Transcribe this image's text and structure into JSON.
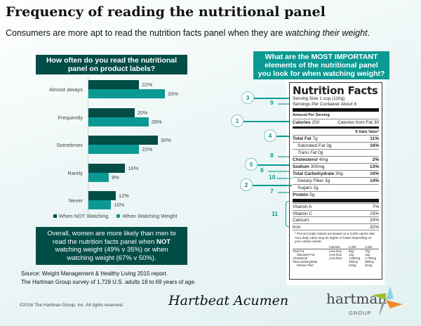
{
  "header": {
    "title": "Frequency of reading the nutritional panel",
    "subtitle_pre": "Consumers are more apt to read the nutrition facts panel when they are ",
    "subtitle_em": "watching their weight",
    "subtitle_post": "."
  },
  "chart_data": {
    "type": "bar",
    "orientation": "horizontal",
    "title": "How often do you read the nutritional panel on product labels?",
    "categories": [
      "Almost always",
      "Frequently",
      "Sometimes",
      "Rarely",
      "Never"
    ],
    "series": [
      {
        "name": "When NOT Watching",
        "color": "#034d47",
        "values": [
          22,
          20,
          30,
          16,
          12
        ]
      },
      {
        "name": "When Watching Weight",
        "color": "#0a9a93",
        "values": [
          33,
          26,
          22,
          9,
          10
        ]
      }
    ],
    "unit": "%",
    "legend": "bottom"
  },
  "callout": {
    "pre": "Overall, women are more likely than men to read the nutrition facts panel when ",
    "bold": "NOT",
    "post": " watching weight (49% v 35%) or when watching weight (67% v 50%)."
  },
  "source": {
    "line1": "Source: Weight Management & Healthy Living 2015 report.",
    "line2": "The Hartman Group survey of 1,728 U.S. adults 18 to 69 years of age."
  },
  "copyright": "©2016 The Hartman Group, Inc. All rights reserved.",
  "logos": {
    "hartbeat": "Hartbeat Acumen",
    "hartman": "hartman",
    "group": "GROUP"
  },
  "right": {
    "question": "What are the MOST IMPORTANT elements of the nutritional panel you look for when watching weight?"
  },
  "label": {
    "title": "Nutrition Facts",
    "serving_size": "Serving Size 1 cup (110g)",
    "servings": "Servings Per Container About 6",
    "amount": "Amount Per Serving",
    "calories_l": "Calories",
    "calories_v": "250",
    "cal_fat": "Calories from Fat 30",
    "dv": "% Daily Value*",
    "rows": [
      {
        "name": "Total Fat",
        "amt": "7g",
        "pct": "11%"
      },
      {
        "name": "Saturated Fat",
        "amt": "3g",
        "pct": "16%"
      },
      {
        "name": "Trans Fat",
        "amt": "0g",
        "pct": ""
      },
      {
        "name": "Cholesterol",
        "amt": "4mg",
        "pct": "2%"
      },
      {
        "name": "Sodium",
        "amt": "300mg",
        "pct": "13%"
      },
      {
        "name": "Total Carbohydrate",
        "amt": "30g",
        "pct": "10%"
      },
      {
        "name": "Dietary Fiber",
        "amt": "3g",
        "pct": "14%"
      },
      {
        "name": "Sugars",
        "amt": "2g",
        "pct": ""
      },
      {
        "name": "Protein",
        "amt": "5g",
        "pct": ""
      }
    ],
    "vitamins": [
      {
        "name": "Vitamin A",
        "pct": "7%"
      },
      {
        "name": "Vitamin C",
        "pct": "15%"
      },
      {
        "name": "Calcium",
        "pct": "20%"
      },
      {
        "name": "Iron",
        "pct": "32%"
      }
    ],
    "footnote": "* Percent Daily Values are based on a 2,000 calorie diet. Your daily value may be higher or lower depending on your calorie needs.",
    "table": [
      [
        "",
        "Calories:",
        "2,000",
        "2,500"
      ],
      [
        "Total Fat",
        "Less than",
        "65g",
        "75g"
      ],
      [
        "   Saturated Fat",
        "Less than",
        "13g",
        "12g"
      ],
      [
        "Cholesterol",
        "Less than",
        "1,500mg",
        "1,700mg"
      ],
      [
        "Total Carbohydrate",
        "",
        "250mg",
        "380mg"
      ],
      [
        "   Dietary Fiber",
        "",
        "22mg",
        "31mg"
      ]
    ]
  },
  "ranks": {
    "calories": "1",
    "sugars": "2",
    "serving_size": "3",
    "total_fat": "4",
    "sodium": "5",
    "total_carb": "6",
    "protein": "7",
    "cholesterol": "8",
    "servings": "9",
    "fiber": "10",
    "vitamins": "11"
  }
}
